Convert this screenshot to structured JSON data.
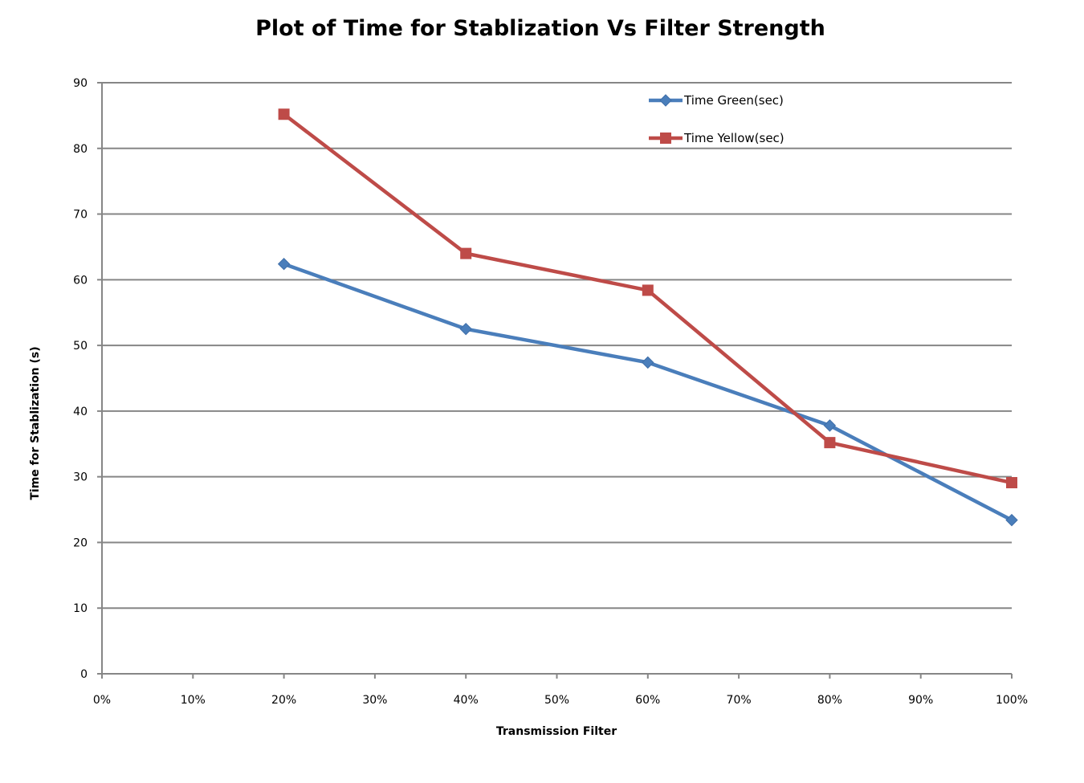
{
  "chart_data": {
    "type": "line",
    "title": "Plot of Time for Stablization Vs Filter Strength",
    "xlabel": "Transmission Filter",
    "ylabel": "Time for Stablization (s)",
    "xlim": [
      0,
      100
    ],
    "ylim": [
      0,
      90
    ],
    "x_ticks": [
      0,
      10,
      20,
      30,
      40,
      50,
      60,
      70,
      80,
      90,
      100
    ],
    "x_tick_labels": [
      "0%",
      "10%",
      "20%",
      "30%",
      "40%",
      "50%",
      "60%",
      "70%",
      "80%",
      "90%",
      "100%"
    ],
    "y_ticks": [
      0,
      10,
      20,
      30,
      40,
      50,
      60,
      70,
      80,
      90
    ],
    "y_tick_labels": [
      "0",
      "10",
      "20",
      "30",
      "40",
      "50",
      "60",
      "70",
      "80",
      "90"
    ],
    "grid": "horizontal",
    "legend_position": "top-right",
    "x": [
      20,
      40,
      60,
      80,
      100
    ],
    "series": [
      {
        "name": "Time Green(sec)",
        "color": "#4a7ebb",
        "marker": "diamond",
        "values": [
          62.4,
          52.5,
          47.4,
          37.8,
          23.4
        ]
      },
      {
        "name": "Time Yellow(sec)",
        "color": "#be4b48",
        "marker": "square",
        "values": [
          85.2,
          64.0,
          58.4,
          35.2,
          29.1
        ]
      }
    ]
  }
}
